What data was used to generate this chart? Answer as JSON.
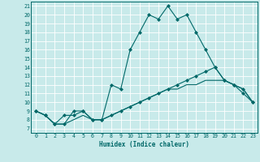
{
  "title": "",
  "xlabel": "Humidex (Indice chaleur)",
  "bg_color": "#c8eaea",
  "grid_color": "#ffffff",
  "line_color": "#006868",
  "xlim": [
    -0.5,
    23.5
  ],
  "ylim": [
    6.5,
    21.5
  ],
  "yticks": [
    7,
    8,
    9,
    10,
    11,
    12,
    13,
    14,
    15,
    16,
    17,
    18,
    19,
    20,
    21
  ],
  "xticks": [
    0,
    1,
    2,
    3,
    4,
    5,
    6,
    7,
    8,
    9,
    10,
    11,
    12,
    13,
    14,
    15,
    16,
    17,
    18,
    19,
    20,
    21,
    22,
    23
  ],
  "line1_x": [
    0,
    1,
    2,
    3,
    4,
    5,
    6,
    7,
    8,
    9,
    10,
    11,
    12,
    13,
    14,
    15,
    16,
    17,
    18,
    19,
    20,
    21,
    22,
    23
  ],
  "line1_y": [
    9.0,
    8.5,
    7.5,
    8.5,
    8.5,
    9.0,
    8.0,
    8.0,
    12.0,
    11.5,
    16.0,
    18.0,
    20.0,
    19.5,
    21.0,
    19.5,
    20.0,
    18.0,
    16.0,
    14.0,
    12.5,
    12.0,
    11.0,
    10.0
  ],
  "line2_x": [
    0,
    1,
    2,
    3,
    4,
    5,
    6,
    7,
    8,
    9,
    10,
    11,
    12,
    13,
    14,
    15,
    16,
    17,
    18,
    19,
    20,
    21,
    22,
    23
  ],
  "line2_y": [
    9.0,
    8.5,
    7.5,
    7.5,
    9.0,
    9.0,
    8.0,
    8.0,
    8.5,
    9.0,
    9.5,
    10.0,
    10.5,
    11.0,
    11.5,
    12.0,
    12.5,
    13.0,
    13.5,
    14.0,
    12.5,
    12.0,
    11.5,
    10.0
  ],
  "line3_x": [
    0,
    1,
    2,
    3,
    4,
    5,
    6,
    7,
    8,
    9,
    10,
    11,
    12,
    13,
    14,
    15,
    16,
    17,
    18,
    19,
    20,
    21,
    22,
    23
  ],
  "line3_y": [
    9.0,
    8.5,
    7.5,
    7.5,
    8.0,
    8.5,
    8.0,
    8.0,
    8.5,
    9.0,
    9.5,
    10.0,
    10.5,
    11.0,
    11.5,
    11.5,
    12.0,
    12.0,
    12.5,
    12.5,
    12.5,
    12.0,
    11.5,
    10.0
  ]
}
